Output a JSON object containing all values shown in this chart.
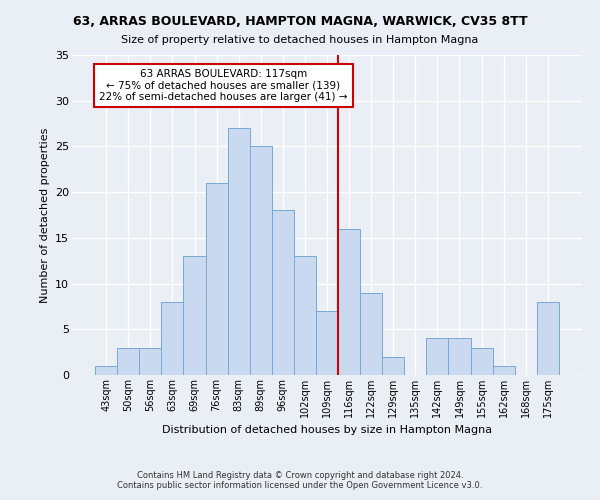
{
  "title": "63, ARRAS BOULEVARD, HAMPTON MAGNA, WARWICK, CV35 8TT",
  "subtitle": "Size of property relative to detached houses in Hampton Magna",
  "xlabel": "Distribution of detached houses by size in Hampton Magna",
  "ylabel": "Number of detached properties",
  "bar_labels": [
    "43sqm",
    "50sqm",
    "56sqm",
    "63sqm",
    "69sqm",
    "76sqm",
    "83sqm",
    "89sqm",
    "96sqm",
    "102sqm",
    "109sqm",
    "116sqm",
    "122sqm",
    "129sqm",
    "135sqm",
    "142sqm",
    "149sqm",
    "155sqm",
    "162sqm",
    "168sqm",
    "175sqm"
  ],
  "bar_values": [
    1,
    3,
    3,
    8,
    13,
    21,
    27,
    25,
    18,
    13,
    7,
    16,
    9,
    2,
    0,
    4,
    4,
    3,
    1,
    0,
    8
  ],
  "bar_color": "#c9d9f0",
  "bar_edge_color": "#7aa8d4",
  "vline_x": 10.5,
  "vline_color": "#cc0000",
  "annotation_text": "63 ARRAS BOULEVARD: 117sqm\n← 75% of detached houses are smaller (139)\n22% of semi-detached houses are larger (41) →",
  "annotation_box_color": "#ffffff",
  "annotation_box_edge": "#cc0000",
  "ylim": [
    0,
    35
  ],
  "yticks": [
    0,
    5,
    10,
    15,
    20,
    25,
    30,
    35
  ],
  "background_color": "#eaeef5",
  "grid_color": "#ffffff",
  "footer": "Contains HM Land Registry data © Crown copyright and database right 2024.\nContains public sector information licensed under the Open Government Licence v3.0."
}
